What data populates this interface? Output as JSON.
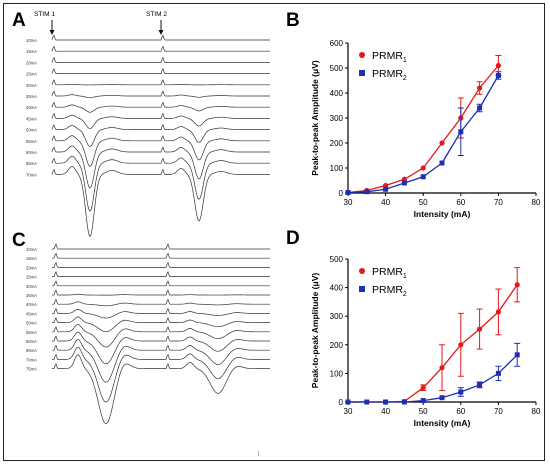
{
  "panels": {
    "A": {
      "letter": "A",
      "stim_labels": [
        "STIM 1",
        "STIM 2"
      ],
      "trace_labels": [
        "10mA",
        "15mA",
        "20mA",
        "25mA",
        "30mA",
        "35mA",
        "40mA",
        "45mA",
        "50mA",
        "55mA",
        "60mA",
        "65mA",
        "70mA"
      ]
    },
    "C": {
      "letter": "C",
      "trace_labels": [
        "10mA",
        "15mA",
        "20mA",
        "25mA",
        "30mA",
        "35mA",
        "40mA",
        "45mA",
        "50mA",
        "55mA",
        "60mA",
        "65mA",
        "70mA",
        "75mA"
      ]
    },
    "B": {
      "letter": "B"
    },
    "D": {
      "letter": "D"
    }
  },
  "chart_data": [
    {
      "panel": "B",
      "type": "line",
      "xlabel": "Intensity (mA)",
      "ylabel": "Peak-to-peak Amplitude (μV)",
      "xlim": [
        30,
        80
      ],
      "ylim": [
        0,
        600
      ],
      "xticks": [
        30,
        40,
        50,
        60,
        70,
        80
      ],
      "yticks": [
        0,
        100,
        200,
        300,
        400,
        500,
        600
      ],
      "legend_position": "top-left",
      "series": [
        {
          "name": "PRMR",
          "name_sub": "1",
          "color": "#e31a1c",
          "marker": "circle",
          "x": [
            30,
            35,
            40,
            45,
            50,
            55,
            60,
            65,
            70
          ],
          "y": [
            2,
            10,
            30,
            55,
            100,
            200,
            300,
            420,
            510
          ],
          "err": [
            0,
            0,
            0,
            0,
            0,
            0,
            80,
            25,
            40
          ]
        },
        {
          "name": "PRMR",
          "name_sub": "2",
          "color": "#1f2fb4",
          "marker": "square",
          "x": [
            30,
            35,
            40,
            45,
            50,
            55,
            60,
            65,
            70
          ],
          "y": [
            2,
            5,
            15,
            40,
            65,
            120,
            245,
            340,
            470
          ],
          "err": [
            0,
            0,
            0,
            0,
            0,
            0,
            95,
            15,
            15
          ]
        }
      ]
    },
    {
      "panel": "D",
      "type": "line",
      "xlabel": "Intensity (mA)",
      "ylabel": "Peak-to-peak Amplitude (μV)",
      "xlim": [
        30,
        80
      ],
      "ylim": [
        0,
        500
      ],
      "xticks": [
        30,
        40,
        50,
        60,
        70,
        80
      ],
      "yticks": [
        0,
        100,
        200,
        300,
        400,
        500
      ],
      "legend_position": "top-left",
      "series": [
        {
          "name": "PRMR",
          "name_sub": "1",
          "color": "#e31a1c",
          "marker": "circle",
          "x": [
            30,
            35,
            40,
            45,
            50,
            55,
            60,
            65,
            70,
            75
          ],
          "y": [
            0,
            0,
            0,
            2,
            50,
            120,
            200,
            255,
            315,
            410
          ],
          "err": [
            0,
            0,
            0,
            0,
            10,
            80,
            110,
            70,
            80,
            60
          ]
        },
        {
          "name": "PRMR",
          "name_sub": "2",
          "color": "#1f2fb4",
          "marker": "square",
          "x": [
            30,
            35,
            40,
            45,
            50,
            55,
            60,
            65,
            70,
            75
          ],
          "y": [
            0,
            0,
            0,
            0,
            5,
            15,
            35,
            60,
            100,
            165
          ],
          "err": [
            0,
            0,
            0,
            0,
            0,
            0,
            15,
            10,
            25,
            40
          ]
        }
      ]
    }
  ]
}
